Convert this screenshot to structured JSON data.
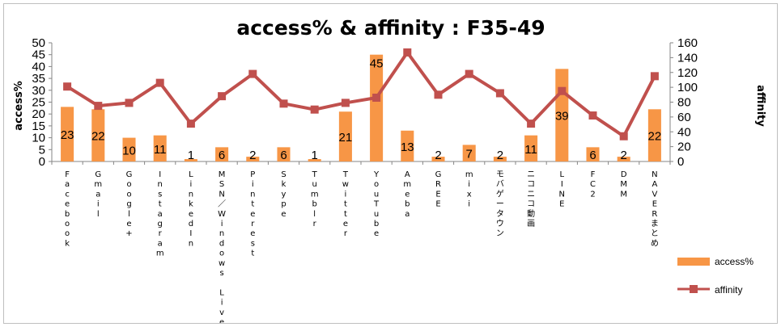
{
  "chart_data": {
    "type": "bar",
    "title": "access% & affinity : F35-49",
    "ylabel": "access%",
    "y2label": "affinity",
    "ylim": [
      0,
      50
    ],
    "yticks": [
      0,
      5,
      10,
      15,
      20,
      25,
      30,
      35,
      40,
      45,
      50
    ],
    "y2lim": [
      0,
      160
    ],
    "y2ticks": [
      0,
      20,
      40,
      60,
      80,
      100,
      120,
      140,
      160
    ],
    "categories": [
      "Facebook",
      "Gmail",
      "Google+",
      "Instagram",
      "LinkedIn",
      "MSN/Windows Live",
      "Pinterest",
      "Skype",
      "Tumblr",
      "Twitter",
      "YouTube",
      "Ameba",
      "GREE",
      "mixi",
      "モバゲータウン",
      "ニコニコ動画",
      "LINE",
      "FC2",
      "DMM",
      "NAVERまとめ"
    ],
    "series": [
      {
        "name": "access%",
        "type": "bar",
        "axis": "left",
        "color": "#f79646",
        "values": [
          23,
          22,
          10,
          11,
          1,
          6,
          2,
          6,
          1,
          21,
          45,
          13,
          2,
          7,
          2,
          11,
          39,
          6,
          2,
          22
        ],
        "data_labels": [
          "23",
          "22",
          "10",
          "11",
          "1",
          "6",
          "2",
          "6",
          "1",
          "21",
          "45",
          "13",
          "2",
          "7",
          "2",
          "11",
          "39",
          "6",
          "2",
          "22"
        ]
      },
      {
        "name": "affinity",
        "type": "line",
        "axis": "right",
        "color": "#c0504d",
        "values": [
          101,
          75,
          79,
          106,
          51,
          88,
          118,
          78,
          70,
          79,
          86,
          147,
          90,
          118,
          92,
          51,
          95,
          62,
          34,
          115
        ]
      }
    ],
    "legend_position": "bottom-right",
    "grid": false
  }
}
